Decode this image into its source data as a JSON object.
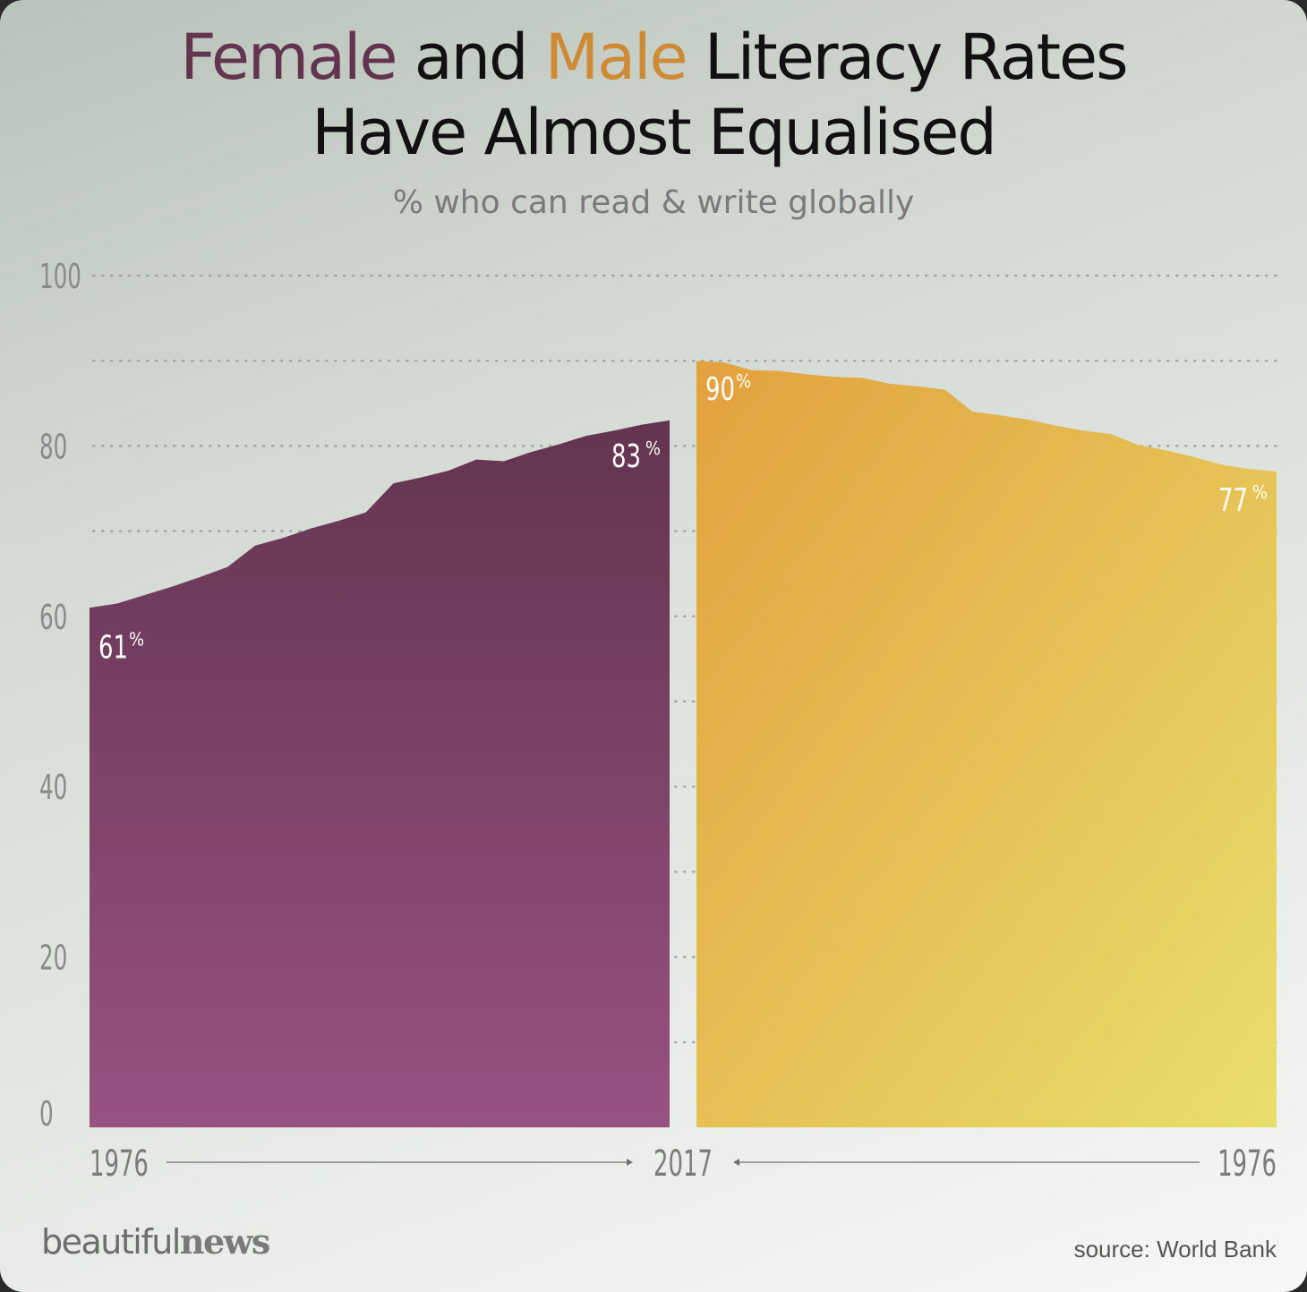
{
  "title": {
    "female_word": "Female",
    "and_word": "and",
    "male_word": "Male",
    "rest_line1": "Literacy Rates",
    "line2": "Have Almost Equalised"
  },
  "subtitle": "% who can read & write globally",
  "brand": {
    "light": "beautiful",
    "bold": "news"
  },
  "source": "source: World Bank",
  "colors": {
    "female_top": "#633450",
    "female_bottom": "#975281",
    "male_top": "#e3a13e",
    "male_bottom": "#e8df6a",
    "title_female": "#633450",
    "title_male": "#cf8a36",
    "axis_text": "#8a8a8a"
  },
  "chart_data": {
    "type": "area",
    "title": "Female and Male Literacy Rates Have Almost Equalised",
    "subtitle": "% who can read & write globally",
    "ylim": [
      0,
      100
    ],
    "y_ticks": [
      0,
      20,
      40,
      60,
      80,
      100
    ],
    "grid": "dotted",
    "series": [
      {
        "name": "Female",
        "direction": "1976 → 2017",
        "x": [
          1976,
          1978,
          1980,
          1982,
          1984,
          1986,
          1988,
          1990,
          1992,
          1994,
          1996,
          1998,
          2000,
          2002,
          2004,
          2006,
          2008,
          2010,
          2012,
          2014,
          2016,
          2017
        ],
        "values": [
          61,
          61.5,
          62.5,
          63.5,
          64.6,
          65.8,
          68.3,
          69.2,
          70.3,
          71.2,
          72.2,
          75.6,
          76.3,
          77.1,
          78.4,
          78.2,
          79.3,
          80.2,
          81.2,
          81.8,
          82.5,
          83
        ],
        "start_label": "61%",
        "end_label": "83%"
      },
      {
        "name": "Male",
        "direction": "2017 → 1976",
        "x": [
          2017,
          2015,
          2013,
          2011,
          2009,
          2007,
          2005,
          2003,
          2001,
          1999,
          1997,
          1995,
          1993,
          1991,
          1989,
          1987,
          1985,
          1983,
          1981,
          1979,
          1977,
          1976
        ],
        "values": [
          90,
          89.8,
          88.9,
          88.8,
          88.4,
          88.1,
          88,
          87.3,
          87,
          86.6,
          84,
          83.6,
          83.1,
          82.4,
          81.8,
          81.4,
          80.1,
          79.5,
          78.7,
          77.8,
          77.3,
          77
        ],
        "start_label": "90%",
        "end_label": "77%"
      }
    ],
    "x_labels": [
      "1976",
      "2017",
      "1976"
    ]
  }
}
